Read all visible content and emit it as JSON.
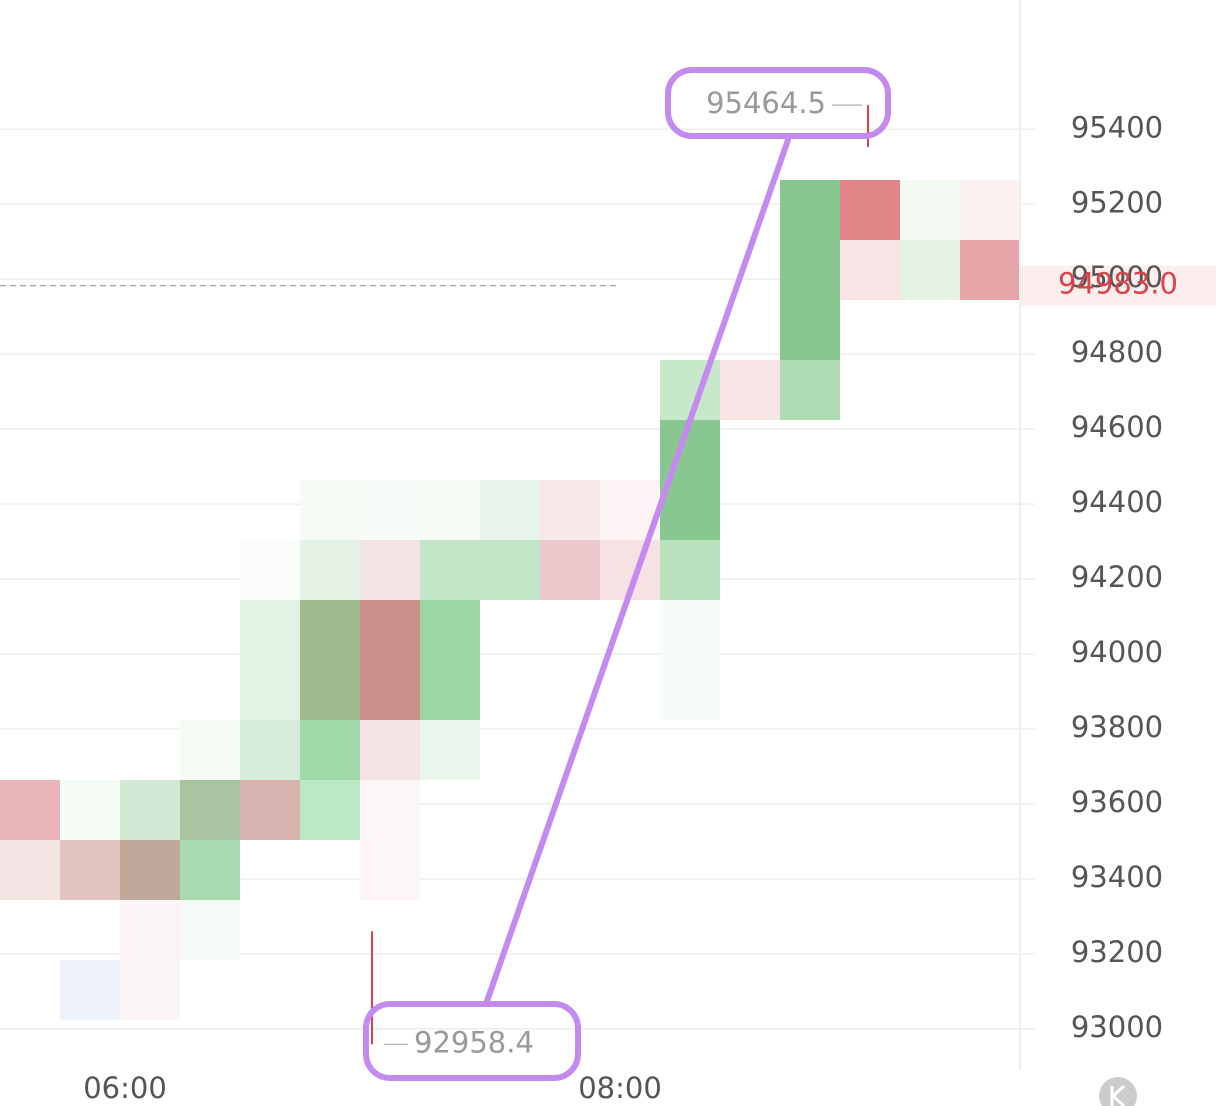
{
  "chart_data": {
    "type": "heatmap",
    "ylim": [
      92890,
      95745
    ],
    "yticks": [
      93000,
      93200,
      93400,
      93600,
      93800,
      94000,
      94200,
      94400,
      94600,
      94800,
      95000,
      95200,
      95400
    ],
    "x_tick_labels": [
      "06:00",
      "08:00"
    ],
    "high": 95464.5,
    "low": 92958.4,
    "last_price": {
      "value": 94983.0,
      "label": "94983.0"
    },
    "grid": true
  }
}
